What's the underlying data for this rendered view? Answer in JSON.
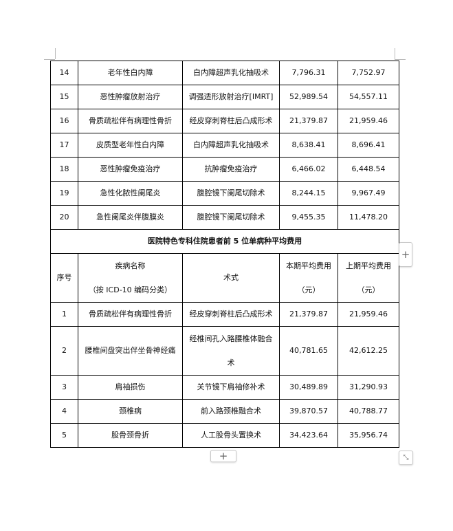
{
  "rows_top": [
    {
      "no": "14",
      "disease": "老年性白内障",
      "surgery": "白内障超声乳化抽吸术",
      "current": "7,796.31",
      "previous": "7,752.97"
    },
    {
      "no": "15",
      "disease": "恶性肿瘤放射治疗",
      "surgery": "调强适形放射治疗[IMRT]",
      "current": "52,989.54",
      "previous": "54,557.11"
    },
    {
      "no": "16",
      "disease": "骨质疏松伴有病理性骨折",
      "surgery": "经皮穿刺脊柱后凸成形术",
      "current": "21,379.87",
      "previous": "21,959.46"
    },
    {
      "no": "17",
      "disease": "皮质型老年性白内障",
      "surgery": "白内障超声乳化抽吸术",
      "current": "8,638.41",
      "previous": "8,696.41"
    },
    {
      "no": "18",
      "disease": "恶性肿瘤免疫治疗",
      "surgery": "抗肿瘤免疫治疗",
      "current": "6,466.02",
      "previous": "6,448.54"
    },
    {
      "no": "19",
      "disease": "急性化脓性阑尾炎",
      "surgery": "腹腔镜下阑尾切除术",
      "current": "8,244.15",
      "previous": "9,967.49"
    },
    {
      "no": "20",
      "disease": "急性阑尾炎伴腹膜炎",
      "surgery": "腹腔镜下阑尾切除术",
      "current": "9,455.35",
      "previous": "11,478.20"
    }
  ],
  "section_title": "医院特色专科住院患者前 5 位单病种平均费用",
  "headers": {
    "no": "序号",
    "disease_line1": "疾病名称",
    "disease_line2": "（按 ICD-10 编码分类）",
    "surgery": "术式",
    "current_line1": "本期平均费用",
    "current_line2": "（元）",
    "previous_line1": "上期平均费用",
    "previous_line2": "（元）"
  },
  "rows_bottom": [
    {
      "no": "1",
      "disease": "骨质疏松伴有病理性骨折",
      "surgery": "经皮穿刺脊柱后凸成形术",
      "current": "21,379.87",
      "previous": "21,959.46"
    },
    {
      "no": "2",
      "disease": "腰椎间盘突出伴坐骨神经痛",
      "surgery_line1": "经椎间孔入路腰椎体融合",
      "surgery_line2": "术",
      "current": "40,781.65",
      "previous": "42,612.25"
    },
    {
      "no": "3",
      "disease": "肩袖损伤",
      "surgery": "关节镜下肩袖修补术",
      "current": "30,489.89",
      "previous": "31,290.93"
    },
    {
      "no": "4",
      "disease": "颈椎病",
      "surgery": "前入路颈椎融合术",
      "current": "39,870.57",
      "previous": "40,788.77"
    },
    {
      "no": "5",
      "disease": "股骨颈骨折",
      "surgery": "人工股骨头置换术",
      "current": "34,423.64",
      "previous": "35,956.74"
    }
  ],
  "controls": {
    "add_column_icon": "plus-icon",
    "add_row_icon": "plus-icon",
    "resize_icon": "resize-diagonal-icon",
    "plus": "+"
  }
}
